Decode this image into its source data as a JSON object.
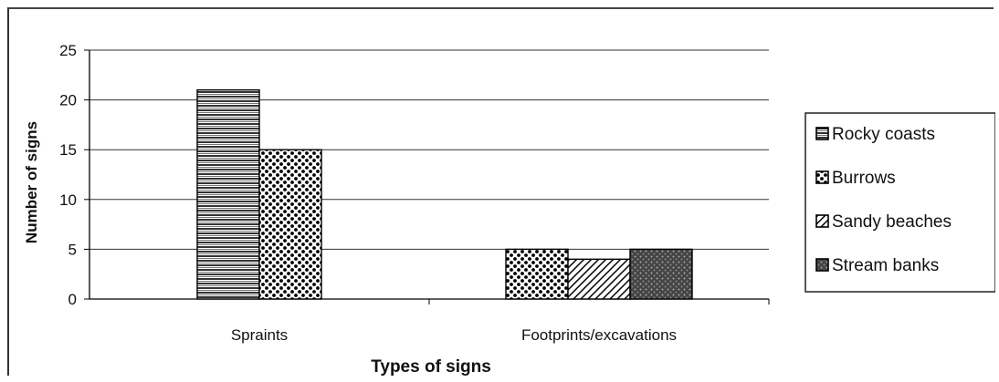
{
  "chart_data": {
    "type": "bar",
    "title": "",
    "xlabel": "Types of signs",
    "ylabel": "Number of signs",
    "ylim": [
      0,
      25
    ],
    "yticks": [
      "0",
      "5",
      "10",
      "15",
      "20",
      "25"
    ],
    "categories": [
      "Spraints",
      "Footprints/excavations"
    ],
    "series": [
      {
        "name": "Rocky coasts",
        "values": [
          21,
          0
        ],
        "pattern": "horizontal-lines"
      },
      {
        "name": "Burrows",
        "values": [
          15,
          5
        ],
        "pattern": "dots"
      },
      {
        "name": "Sandy beaches",
        "values": [
          0,
          4
        ],
        "pattern": "diagonal-lines"
      },
      {
        "name": "Stream banks",
        "values": [
          0,
          5
        ],
        "pattern": "dark-dots"
      }
    ],
    "grid": true,
    "legend_position": "right"
  }
}
